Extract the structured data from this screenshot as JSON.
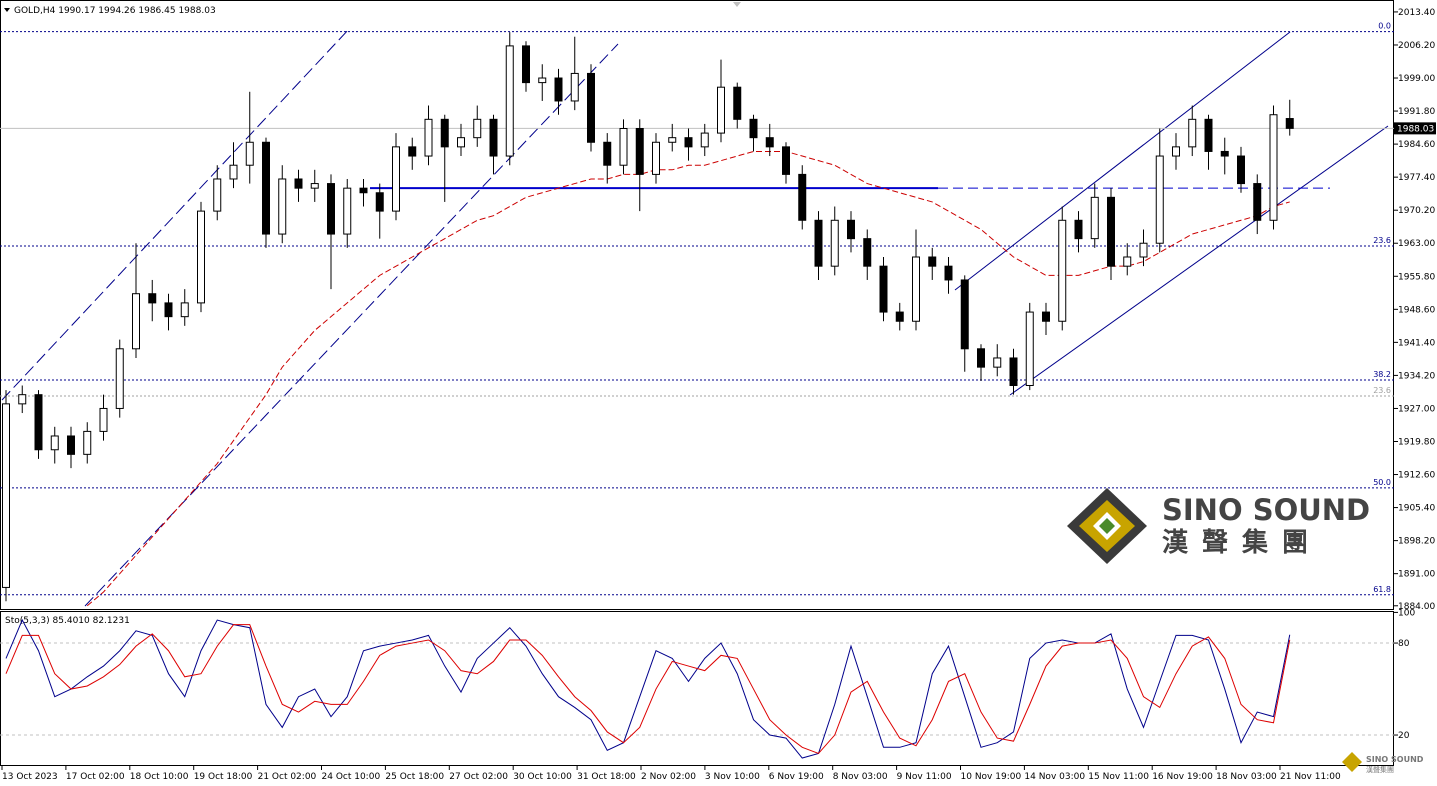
{
  "header": "GOLD,H4 1990.17 1994.26 1986.45 1988.03",
  "watermark": {
    "en": "SINO SOUND",
    "cn": "漢聲集團"
  },
  "chart_data": [
    {
      "type": "candlestick",
      "ylim": [
        1883.3,
        2016.0
      ],
      "yticks": [
        {
          "value": 2013.4,
          "label": "2013.40"
        },
        {
          "value": 2006.2,
          "label": "2006.20"
        },
        {
          "value": 1999,
          "label": "1999.00"
        },
        {
          "value": 1991.8,
          "label": "1991.80"
        },
        {
          "value": 1984.6,
          "label": "1984.60"
        },
        {
          "value": 1977.4,
          "label": "1977.40"
        },
        {
          "value": 1970.2,
          "label": "1970.20"
        },
        {
          "value": 1963,
          "label": "1963.00"
        },
        {
          "value": 1955.8,
          "label": "1955.80"
        },
        {
          "value": 1948.6,
          "label": "1948.60"
        },
        {
          "value": 1941.4,
          "label": "1941.40"
        },
        {
          "value": 1934.2,
          "label": "1934.20"
        },
        {
          "value": 1927,
          "label": "1927.00"
        },
        {
          "value": 1919.8,
          "label": "1919.80"
        },
        {
          "value": 1912.6,
          "label": "1912.60"
        },
        {
          "value": 1905.4,
          "label": "1905.40"
        },
        {
          "value": 1898.2,
          "label": "1898.20"
        },
        {
          "value": 1891,
          "label": "1891.00"
        },
        {
          "value": 1884,
          "label": "1884.00"
        }
      ],
      "last": 1988.03,
      "hline": 1975,
      "levels": [
        {
          "label": "0.0",
          "value": 2009.1,
          "color": "#00008b"
        },
        {
          "label": "23.6",
          "value": 1962.4,
          "color": "#00008b"
        },
        {
          "label": "38.2",
          "value": 1933.2,
          "color": "#00008b"
        },
        {
          "label": "23.6",
          "value": 1929.7,
          "color": "#a0a0a0"
        },
        {
          "label": "50.0",
          "value": 1909.7,
          "color": "#00008b"
        },
        {
          "label": "61.8",
          "value": 1886.4,
          "color": "#00008b"
        }
      ],
      "xlabels": [
        "13 Oct 2023",
        "17 Oct 02:00",
        "18 Oct 10:00",
        "19 Oct 18:00",
        "21 Oct 02:00",
        "24 Oct 10:00",
        "25 Oct 18:00",
        "27 Oct 02:00",
        "30 Oct 10:00",
        "31 Oct 18:00",
        "2 Nov 02:00",
        "3 Nov 10:00",
        "6 Nov 19:00",
        "8 Nov 03:00",
        "9 Nov 11:00",
        "10 Nov 19:00",
        "14 Nov 03:00",
        "15 Nov 11:00",
        "16 Nov 19:00",
        "18 Nov 03:00",
        "21 Nov 11:00"
      ],
      "ohlc": [
        [
          1888,
          1931,
          1885,
          1928
        ],
        [
          1928,
          1932,
          1926,
          1930
        ],
        [
          1930,
          1931,
          1916,
          1918
        ],
        [
          1918,
          1923,
          1915,
          1921
        ],
        [
          1921,
          1923,
          1914,
          1917
        ],
        [
          1917,
          1924,
          1915,
          1922
        ],
        [
          1922,
          1930,
          1920,
          1927
        ],
        [
          1927,
          1942,
          1925,
          1940
        ],
        [
          1940,
          1963,
          1938,
          1952
        ],
        [
          1952,
          1955,
          1946,
          1950
        ],
        [
          1950,
          1952,
          1944,
          1947
        ],
        [
          1947,
          1953,
          1945,
          1950
        ],
        [
          1950,
          1972,
          1948,
          1970
        ],
        [
          1970,
          1980,
          1968,
          1977
        ],
        [
          1977,
          1985,
          1975,
          1980
        ],
        [
          1980,
          1996,
          1976,
          1985
        ],
        [
          1985,
          1986,
          1962,
          1965
        ],
        [
          1965,
          1980,
          1963,
          1977
        ],
        [
          1977,
          1979,
          1972,
          1975
        ],
        [
          1975,
          1979,
          1972,
          1976
        ],
        [
          1976,
          1978,
          1953,
          1965
        ],
        [
          1965,
          1977,
          1962,
          1975
        ],
        [
          1975,
          1977,
          1971,
          1974
        ],
        [
          1974,
          1976,
          1964,
          1970
        ],
        [
          1970,
          1987,
          1968,
          1984
        ],
        [
          1984,
          1986,
          1979,
          1982
        ],
        [
          1982,
          1993,
          1980,
          1990
        ],
        [
          1990,
          1991,
          1972,
          1984
        ],
        [
          1984,
          1989,
          1982,
          1986
        ],
        [
          1986,
          1993,
          1984,
          1990
        ],
        [
          1990,
          1991,
          1978,
          1982
        ],
        [
          1982,
          2009,
          1980,
          2006
        ],
        [
          2006,
          2007,
          1996,
          1998
        ],
        [
          1998,
          2002,
          1994,
          1999
        ],
        [
          1999,
          2001,
          1991,
          1994
        ],
        [
          1994,
          2008,
          1992,
          2000
        ],
        [
          2000,
          2002,
          1983,
          1985
        ],
        [
          1985,
          1987,
          1976,
          1980
        ],
        [
          1980,
          1990,
          1978,
          1988
        ],
        [
          1988,
          1990,
          1970,
          1978
        ],
        [
          1978,
          1987,
          1976,
          1985
        ],
        [
          1985,
          1989,
          1983,
          1986
        ],
        [
          1986,
          1988,
          1981,
          1984
        ],
        [
          1984,
          1989,
          1982,
          1987
        ],
        [
          1987,
          2003,
          1985,
          1997
        ],
        [
          1997,
          1998,
          1988,
          1990
        ],
        [
          1990,
          1991,
          1983,
          1986
        ],
        [
          1986,
          1989,
          1982,
          1984
        ],
        [
          1984,
          1985,
          1976,
          1978
        ],
        [
          1978,
          1980,
          1966,
          1968
        ],
        [
          1968,
          1970,
          1955,
          1958
        ],
        [
          1958,
          1971,
          1956,
          1968
        ],
        [
          1968,
          1970,
          1961,
          1964
        ],
        [
          1964,
          1966,
          1955,
          1958
        ],
        [
          1958,
          1960,
          1946,
          1948
        ],
        [
          1948,
          1950,
          1944,
          1946
        ],
        [
          1946,
          1966,
          1944,
          1960
        ],
        [
          1960,
          1962,
          1955,
          1958
        ],
        [
          1958,
          1960,
          1952,
          1955
        ],
        [
          1955,
          1956,
          1935,
          1940
        ],
        [
          1940,
          1941,
          1933,
          1936
        ],
        [
          1936,
          1941,
          1934,
          1938
        ],
        [
          1938,
          1940,
          1930,
          1932
        ],
        [
          1932,
          1950,
          1931,
          1948
        ],
        [
          1948,
          1950,
          1943,
          1946
        ],
        [
          1946,
          1971,
          1944,
          1968
        ],
        [
          1968,
          1970,
          1961,
          1964
        ],
        [
          1964,
          1976,
          1962,
          1973
        ],
        [
          1973,
          1975,
          1955,
          1958
        ],
        [
          1958,
          1963,
          1956,
          1960
        ],
        [
          1960,
          1966,
          1958,
          1963
        ],
        [
          1963,
          1988,
          1961,
          1982
        ],
        [
          1982,
          1987,
          1979,
          1984
        ],
        [
          1984,
          1993,
          1982,
          1990
        ],
        [
          1990,
          1991,
          1979,
          1983
        ],
        [
          1983,
          1986,
          1978,
          1982
        ],
        [
          1982,
          1984,
          1974,
          1976
        ],
        [
          1976,
          1978,
          1965,
          1968
        ],
        [
          1968,
          1993,
          1966,
          1991
        ],
        [
          1990.17,
          1994.26,
          1986.45,
          1988.03
        ]
      ],
      "ma": {
        "color": "#cc0000",
        "values": [
          null,
          null,
          null,
          null,
          null,
          1884,
          1887,
          1891,
          1895,
          1899,
          1903,
          1907,
          1911,
          1915,
          1920,
          1925,
          1930,
          1936,
          1940,
          1944,
          1947,
          1950,
          1953,
          1956,
          1958,
          1960,
          1962,
          1964,
          1966,
          1968,
          1969,
          1971,
          1973,
          1974,
          1975,
          1976,
          1977,
          1977,
          1978,
          1978,
          1979,
          1979,
          1980,
          1980,
          1981,
          1982,
          1983,
          1983,
          1983,
          1982,
          1981,
          1980,
          1978,
          1976,
          1975,
          1974,
          1973,
          1972,
          1970,
          1968,
          1966,
          1963,
          1960,
          1958,
          1956,
          1956,
          1956,
          1957,
          1958,
          1958,
          1959,
          1961,
          1963,
          1965,
          1966,
          1967,
          1968,
          1969,
          1971,
          1972
        ]
      }
    },
    {
      "type": "line",
      "title": "Sto(5,3,3) 85.4010 82.1231",
      "ylim": [
        0,
        100
      ],
      "yticks": [
        100,
        80,
        20
      ],
      "series": [
        {
          "color": "#00008b",
          "values": [
            70,
            95,
            75,
            45,
            50,
            58,
            65,
            75,
            88,
            85,
            60,
            45,
            75,
            95,
            92,
            90,
            40,
            25,
            45,
            50,
            32,
            45,
            75,
            78,
            80,
            82,
            85,
            65,
            48,
            70,
            80,
            90,
            78,
            60,
            45,
            38,
            30,
            10,
            15,
            45,
            75,
            70,
            55,
            70,
            80,
            60,
            30,
            20,
            18,
            5,
            8,
            40,
            78,
            45,
            12,
            12,
            15,
            60,
            78,
            45,
            12,
            15,
            22,
            70,
            80,
            82,
            80,
            80,
            86,
            50,
            25,
            55,
            85,
            85,
            82,
            50,
            15,
            35,
            32,
            85.401
          ]
        },
        {
          "color": "#dd0000",
          "values": [
            60,
            85,
            85,
            60,
            50,
            52,
            58,
            66,
            78,
            86,
            75,
            58,
            60,
            78,
            92,
            92,
            65,
            40,
            35,
            42,
            40,
            40,
            55,
            72,
            78,
            80,
            82,
            75,
            62,
            60,
            68,
            82,
            82,
            72,
            58,
            45,
            36,
            22,
            15,
            25,
            50,
            68,
            65,
            62,
            72,
            70,
            50,
            30,
            20,
            12,
            8,
            20,
            48,
            55,
            35,
            18,
            13,
            30,
            55,
            60,
            35,
            18,
            16,
            40,
            65,
            78,
            80,
            80,
            82,
            70,
            45,
            38,
            60,
            78,
            84,
            70,
            40,
            30,
            28,
            82.1231
          ]
        }
      ]
    }
  ]
}
